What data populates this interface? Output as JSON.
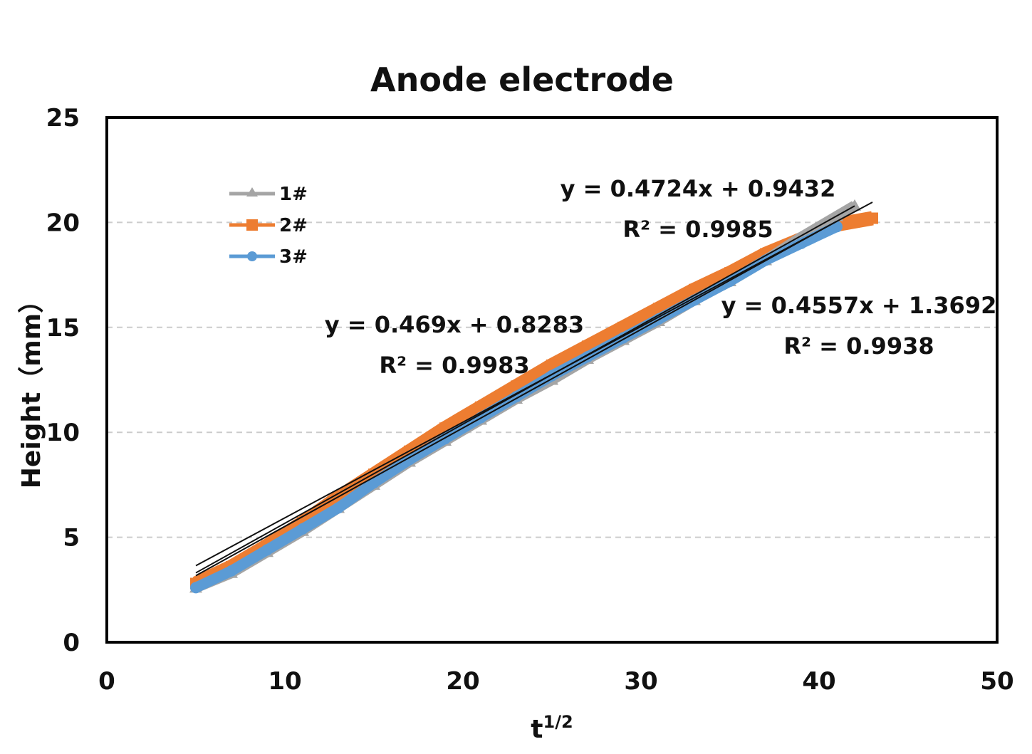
{
  "chart_data": {
    "type": "line",
    "title": "Anode electrode",
    "xlabel": "t",
    "xlabel_sup": "1/2",
    "ylabel": "Height（mm）",
    "xlim": [
      0,
      50
    ],
    "ylim": [
      0,
      25
    ],
    "xticks": [
      "0",
      "10",
      "20",
      "30",
      "40",
      "50"
    ],
    "yticks": [
      "0",
      "5",
      "10",
      "15",
      "20",
      "25"
    ],
    "grid": "horizontal dashed",
    "legend_position": "top-left",
    "series": [
      {
        "name": "1#",
        "color": "#a5a5a5",
        "marker": "triangle",
        "x": [
          5,
          7,
          9,
          11,
          13,
          15,
          17,
          19,
          21,
          23,
          25,
          27,
          29,
          31,
          33,
          35,
          37,
          39,
          41,
          42
        ],
        "y": [
          2.6,
          3.3,
          4.3,
          5.3,
          6.4,
          7.5,
          8.6,
          9.6,
          10.6,
          11.6,
          12.5,
          13.5,
          14.4,
          15.3,
          16.3,
          17.2,
          18.2,
          19.3,
          20.3,
          20.8
        ]
      },
      {
        "name": "2#",
        "color": "#ed7d31",
        "marker": "square",
        "x": [
          5,
          7,
          9,
          11,
          13,
          15,
          17,
          19,
          21,
          23,
          25,
          27,
          29,
          31,
          33,
          35,
          37,
          39,
          41,
          43
        ],
        "y": [
          2.8,
          3.6,
          4.6,
          5.7,
          6.9,
          8.0,
          9.1,
          10.2,
          11.2,
          12.2,
          13.2,
          14.1,
          15.0,
          15.9,
          16.8,
          17.6,
          18.5,
          19.2,
          19.9,
          20.2
        ]
      },
      {
        "name": "3#",
        "color": "#5b9bd5",
        "marker": "circle",
        "x": [
          5,
          7,
          9,
          11,
          13,
          15,
          17,
          19,
          21,
          23,
          25,
          27,
          29,
          31,
          33,
          35,
          37,
          39,
          41
        ],
        "y": [
          2.6,
          3.4,
          4.4,
          5.4,
          6.4,
          7.6,
          8.7,
          9.7,
          10.7,
          11.7,
          12.7,
          13.6,
          14.5,
          15.4,
          16.3,
          17.2,
          18.2,
          19.0,
          19.8
        ]
      }
    ],
    "trendlines": [
      {
        "series": "1#",
        "slope": 0.4724,
        "intercept": 0.9432,
        "x_range": [
          5,
          42
        ],
        "equation": "y = 0.4724x + 0.9432",
        "r2": "R² = 0.9985"
      },
      {
        "series": "2#",
        "slope": 0.4557,
        "intercept": 1.3692,
        "x_range": [
          5,
          43
        ],
        "equation": "y = 0.4557x + 1.3692",
        "r2": "R² = 0.9938"
      },
      {
        "series": "3#",
        "slope": 0.469,
        "intercept": 0.8283,
        "x_range": [
          5,
          41
        ],
        "equation": "y = 0.469x + 0.8283",
        "r2": "R² = 0.9983"
      }
    ]
  }
}
